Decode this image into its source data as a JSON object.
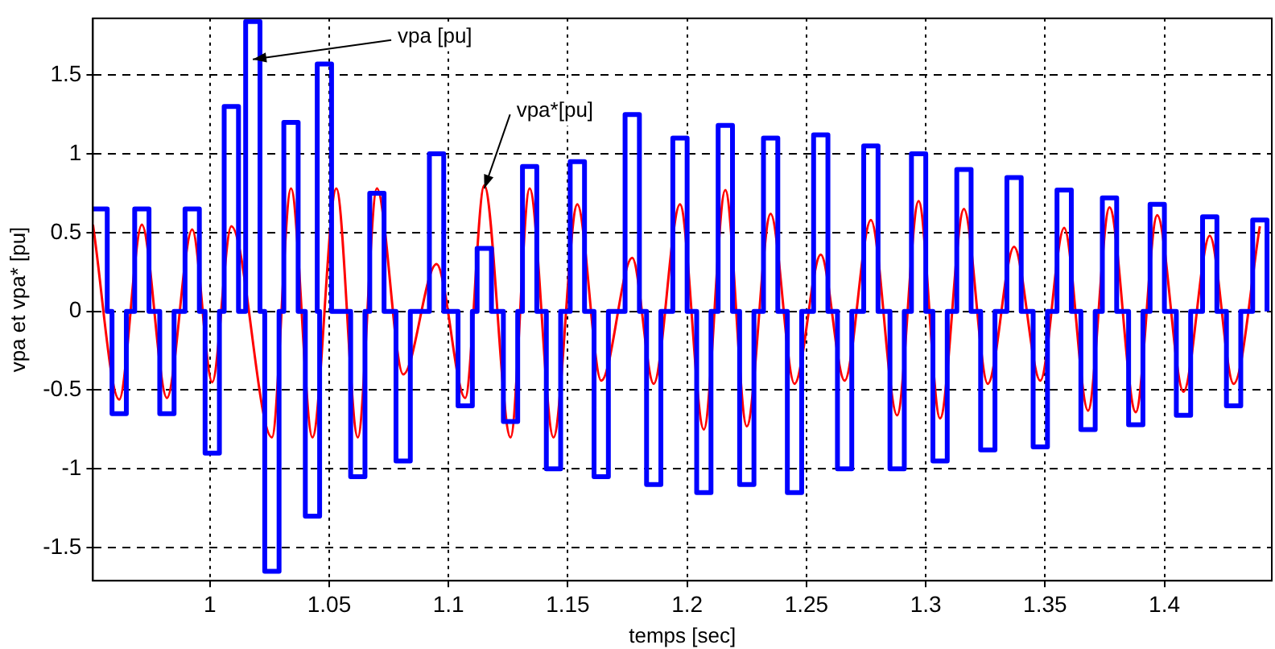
{
  "chart_data": {
    "type": "line",
    "xlabel": "temps [sec]",
    "ylabel": "vpa et vpa* [pu]",
    "xlim": [
      0.951,
      1.445
    ],
    "ylim": [
      -1.71,
      1.86
    ],
    "xticks": [
      1,
      1.05,
      1.1,
      1.15,
      1.2,
      1.25,
      1.3,
      1.35,
      1.4
    ],
    "yticks": [
      -1.5,
      -1,
      -0.5,
      0,
      0.5,
      1,
      1.5
    ],
    "grid": true,
    "legend": false,
    "line_style": "solid",
    "marker": "none",
    "annotations": [
      {
        "text": "vpa [pu]",
        "x": 1.018,
        "y": 1.6
      },
      {
        "text": "vpa*[pu]",
        "x": 1.115,
        "y": 0.78
      }
    ],
    "series": [
      {
        "type": "step",
        "color": "#0000ff",
        "x": [
          0.951,
          0.957,
          0.959,
          0.965,
          0.9685,
          0.9745,
          0.979,
          0.985,
          0.9896,
          0.9956,
          0.998,
          1.004,
          1.006,
          1.012,
          1.015,
          1.021,
          1.023,
          1.029,
          1.031,
          1.037,
          1.04,
          1.046,
          1.045,
          1.051,
          1.059,
          1.065,
          1.067,
          1.073,
          1.078,
          1.084,
          1.092,
          1.098,
          1.104,
          1.11,
          1.112,
          1.118,
          1.123,
          1.129,
          1.131,
          1.137,
          1.141,
          1.147,
          1.151,
          1.157,
          1.161,
          1.167,
          1.174,
          1.18,
          1.183,
          1.189,
          1.194,
          1.2,
          1.204,
          1.21,
          1.213,
          1.219,
          1.222,
          1.228,
          1.232,
          1.238,
          1.242,
          1.248,
          1.253,
          1.259,
          1.263,
          1.269,
          1.274,
          1.28,
          1.285,
          1.291,
          1.294,
          1.3,
          1.303,
          1.309,
          1.313,
          1.319,
          1.323,
          1.329,
          1.334,
          1.34,
          1.345,
          1.351,
          1.355,
          1.361,
          1.365,
          1.371,
          1.374,
          1.38,
          1.385,
          1.391,
          1.394,
          1.4,
          1.405,
          1.411,
          1.416,
          1.422,
          1.426,
          1.432,
          1.437,
          1.443
        ],
        "values": [
          0.65,
          0,
          -0.65,
          0,
          0.65,
          0,
          -0.65,
          0,
          0.65,
          0,
          -0.9,
          0,
          1.3,
          0,
          1.84,
          0,
          -1.65,
          0,
          1.2,
          0,
          -1.3,
          0,
          1.57,
          0,
          -1.05,
          0,
          0.75,
          0,
          -0.95,
          0,
          1.0,
          0,
          -0.6,
          0,
          0.4,
          0,
          -0.7,
          0,
          0.92,
          0,
          -1.0,
          0,
          0.95,
          0,
          -1.05,
          0,
          1.25,
          0,
          -1.1,
          0,
          1.1,
          0,
          -1.15,
          0,
          1.18,
          0,
          -1.1,
          0,
          1.1,
          0,
          -1.15,
          0,
          1.12,
          0,
          -1.0,
          0,
          1.05,
          0,
          -1.0,
          0,
          1.0,
          0,
          -0.95,
          0,
          0.9,
          0,
          -0.88,
          0,
          0.85,
          0,
          -0.86,
          0,
          0.77,
          0,
          -0.75,
          0,
          0.72,
          0,
          -0.72,
          0,
          0.68,
          0,
          -0.66,
          0,
          0.6,
          0,
          -0.6,
          0,
          0.58,
          0
        ]
      },
      {
        "color": "#ff0000",
        "x": [
          0.951,
          0.962,
          0.9715,
          0.982,
          0.9926,
          1.001,
          1.009,
          1.026,
          1.034,
          1.043,
          1.053,
          1.062,
          1.07,
          1.081,
          1.095,
          1.107,
          1.115,
          1.126,
          1.134,
          1.144,
          1.154,
          1.164,
          1.177,
          1.186,
          1.197,
          1.207,
          1.216,
          1.225,
          1.235,
          1.245,
          1.256,
          1.266,
          1.277,
          1.288,
          1.297,
          1.306,
          1.316,
          1.326,
          1.337,
          1.348,
          1.358,
          1.368,
          1.377,
          1.388,
          1.397,
          1.408,
          1.419,
          1.429,
          1.44
        ],
        "values": [
          0.55,
          -0.56,
          0.55,
          -0.55,
          0.52,
          -0.45,
          0.54,
          -0.8,
          0.78,
          -0.8,
          0.78,
          -0.8,
          0.78,
          -0.4,
          0.3,
          -0.55,
          0.8,
          -0.8,
          0.78,
          -0.8,
          0.68,
          -0.44,
          0.34,
          -0.46,
          0.68,
          -0.75,
          0.77,
          -0.73,
          0.62,
          -0.46,
          0.36,
          -0.44,
          0.58,
          -0.66,
          0.7,
          -0.68,
          0.65,
          -0.46,
          0.41,
          -0.44,
          0.53,
          -0.63,
          0.66,
          -0.64,
          0.61,
          -0.51,
          0.48,
          -0.46,
          0.54
        ]
      }
    ]
  }
}
